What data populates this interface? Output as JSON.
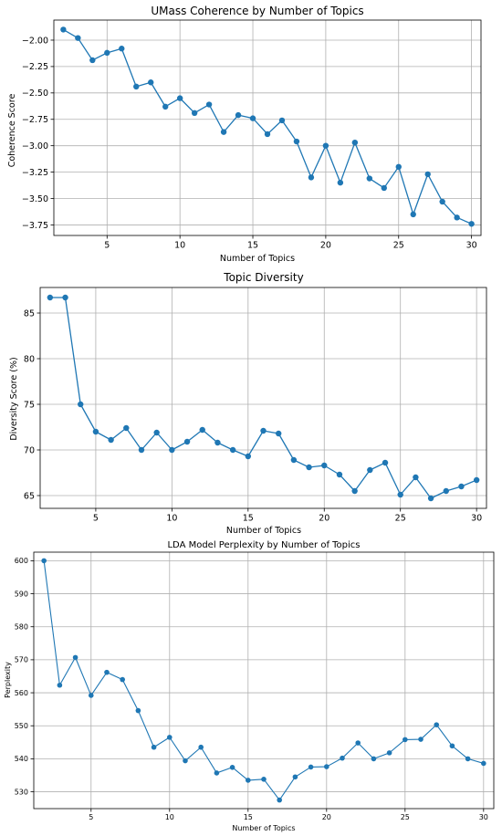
{
  "colors": {
    "series": "#1f77b4",
    "grid": "#b0b0b0",
    "axis": "#000000",
    "background": "#ffffff"
  },
  "chart_data": [
    {
      "type": "line",
      "title": "UMass Coherence by Number of Topics",
      "xlabel": "Number of Topics",
      "ylabel": "Coherence Score",
      "grid": true,
      "x": [
        2,
        3,
        4,
        5,
        6,
        7,
        8,
        9,
        10,
        11,
        12,
        13,
        14,
        15,
        16,
        17,
        18,
        19,
        20,
        21,
        22,
        23,
        24,
        25,
        26,
        27,
        28,
        29,
        30
      ],
      "values": [
        -1.9,
        -1.98,
        -2.19,
        -2.12,
        -2.08,
        -2.44,
        -2.4,
        -2.63,
        -2.55,
        -2.69,
        -2.61,
        -2.87,
        -2.71,
        -2.74,
        -2.89,
        -2.76,
        -2.96,
        -3.3,
        -3.0,
        -3.35,
        -2.97,
        -3.31,
        -3.4,
        -3.2,
        -3.65,
        -3.27,
        -3.53,
        -3.68,
        -3.74
      ],
      "xlim": [
        1.35,
        30.65
      ],
      "ylim": [
        -3.85,
        -1.81
      ],
      "xticks": [
        5,
        10,
        15,
        20,
        25,
        30
      ],
      "yticks": [
        -2.0,
        -2.25,
        -2.5,
        -2.75,
        -3.0,
        -3.25,
        -3.5,
        -3.75
      ],
      "yticklabels": [
        "−2.00",
        "−2.25",
        "−2.50",
        "−2.75",
        "−3.00",
        "−3.25",
        "−3.50",
        "−3.75"
      ],
      "xticklabels": [
        "5",
        "10",
        "15",
        "20",
        "25",
        "30"
      ]
    },
    {
      "type": "line",
      "title": "Topic Diversity",
      "xlabel": "Number of Topics",
      "ylabel": "Diversity Score (%)",
      "grid": true,
      "x": [
        2,
        3,
        4,
        5,
        6,
        7,
        8,
        9,
        10,
        11,
        12,
        13,
        14,
        15,
        16,
        17,
        18,
        19,
        20,
        21,
        22,
        23,
        24,
        25,
        26,
        27,
        28,
        29,
        30
      ],
      "values": [
        86.7,
        86.7,
        75.0,
        72.0,
        71.1,
        72.4,
        70.0,
        71.9,
        70.0,
        70.9,
        72.2,
        70.8,
        70.0,
        69.3,
        72.1,
        71.8,
        68.9,
        68.1,
        68.3,
        67.3,
        65.5,
        67.8,
        68.6,
        65.1,
        67.0,
        64.7,
        65.5,
        66.0,
        66.7
      ],
      "xlim": [
        1.35,
        30.65
      ],
      "ylim": [
        63.6,
        87.8
      ],
      "xticks": [
        5,
        10,
        15,
        20,
        25,
        30
      ],
      "yticks": [
        65,
        70,
        75,
        80,
        85
      ],
      "yticklabels": [
        "65",
        "70",
        "75",
        "80",
        "85"
      ],
      "xticklabels": [
        "5",
        "10",
        "15",
        "20",
        "25",
        "30"
      ]
    },
    {
      "type": "line",
      "title": "LDA Model Perplexity by Number of Topics",
      "xlabel": "Number of Topics",
      "ylabel": "Perplexity",
      "grid": true,
      "x": [
        2,
        3,
        4,
        5,
        6,
        7,
        8,
        9,
        10,
        11,
        12,
        13,
        14,
        15,
        16,
        17,
        18,
        19,
        20,
        21,
        22,
        23,
        24,
        25,
        26,
        27,
        28,
        29,
        30
      ],
      "values": [
        600.0,
        562.3,
        570.7,
        559.2,
        566.2,
        564.0,
        554.6,
        543.5,
        546.5,
        539.4,
        543.5,
        535.7,
        537.4,
        533.5,
        533.8,
        527.5,
        534.5,
        537.5,
        537.6,
        540.2,
        544.8,
        540.0,
        541.8,
        545.8,
        545.9,
        550.3,
        543.9,
        540.0,
        538.6
      ],
      "xlim": [
        1.35,
        30.65
      ],
      "ylim": [
        524.9,
        602.6
      ],
      "xticks": [
        5,
        10,
        15,
        20,
        25,
        30
      ],
      "yticks": [
        530,
        540,
        550,
        560,
        570,
        580,
        590,
        600
      ],
      "yticklabels": [
        "530",
        "540",
        "550",
        "560",
        "570",
        "580",
        "590",
        "600"
      ],
      "xticklabels": [
        "5",
        "10",
        "15",
        "20",
        "25",
        "30"
      ]
    }
  ]
}
